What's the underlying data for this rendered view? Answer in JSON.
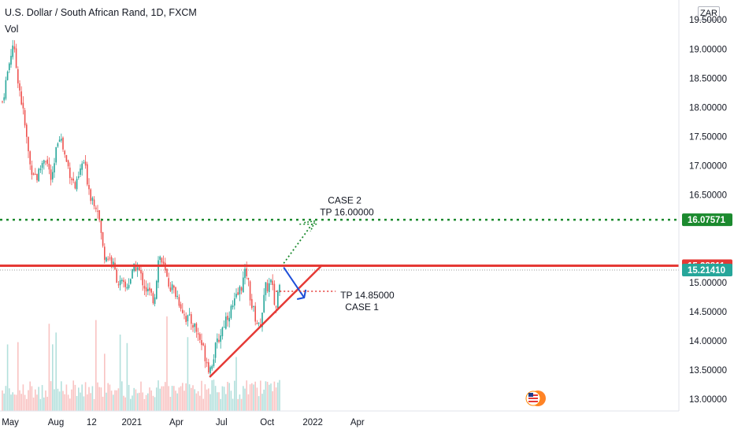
{
  "header": {
    "title": "U.S. Dollar / South African Rand, 1D, FXCM",
    "volume_label": "Vol",
    "currency": "ZAR"
  },
  "colors": {
    "up": "#26a69a",
    "down": "#ef5350",
    "support": "#e53935",
    "resistance": "#e53935",
    "target": "#1b8a2e",
    "case1_arrow": "#1e4fd8",
    "current_price": "#26a69a"
  },
  "chart_data": {
    "type": "candlestick",
    "title": "U.S. Dollar / South African Rand, 1D, FXCM",
    "ylim": [
      12.8,
      19.8
    ],
    "y_ticks": [
      "19.50000",
      "19.00000",
      "18.50000",
      "18.00000",
      "17.50000",
      "17.00000",
      "16.50000",
      "15.00000",
      "14.50000",
      "14.00000",
      "13.50000",
      "13.00000"
    ],
    "x_ticks": [
      "May",
      "Aug",
      "12",
      "2021",
      "Apr",
      "Jul",
      "Oct",
      "2022",
      "Apr"
    ],
    "close_path": [
      [
        "2020-04-15",
        18.1
      ],
      [
        "2020-05-06",
        19.1
      ],
      [
        "2020-05-27",
        17.9
      ],
      [
        "2020-06-10",
        17.0
      ],
      [
        "2020-06-24",
        16.8
      ],
      [
        "2020-07-10",
        17.2
      ],
      [
        "2020-07-24",
        16.7
      ],
      [
        "2020-08-07",
        17.6
      ],
      [
        "2020-08-21",
        17.1
      ],
      [
        "2020-09-10",
        16.6
      ],
      [
        "2020-09-25",
        17.1
      ],
      [
        "2020-10-10",
        16.5
      ],
      [
        "2020-10-24",
        16.3
      ],
      [
        "2020-11-05",
        15.5
      ],
      [
        "2020-11-20",
        15.4
      ],
      [
        "2020-12-05",
        15.0
      ],
      [
        "2020-12-20",
        14.9
      ],
      [
        "2021-01-10",
        15.3
      ],
      [
        "2021-01-29",
        14.9
      ],
      [
        "2021-02-15",
        14.7
      ],
      [
        "2021-02-25",
        15.5
      ],
      [
        "2021-03-15",
        15.0
      ],
      [
        "2021-04-01",
        14.8
      ],
      [
        "2021-04-20",
        14.4
      ],
      [
        "2021-05-05",
        14.3
      ],
      [
        "2021-05-20",
        14.0
      ],
      [
        "2021-06-07",
        13.5
      ],
      [
        "2021-06-20",
        13.9
      ],
      [
        "2021-07-10",
        14.4
      ],
      [
        "2021-07-25",
        14.6
      ],
      [
        "2021-08-08",
        14.9
      ],
      [
        "2021-08-20",
        15.2
      ],
      [
        "2021-08-31",
        14.6
      ],
      [
        "2021-09-15",
        14.2
      ],
      [
        "2021-09-28",
        14.9
      ],
      [
        "2021-10-10",
        15.0
      ],
      [
        "2021-10-18",
        14.5
      ],
      [
        "2021-10-28",
        15.2
      ]
    ],
    "horizontal_lines": [
      {
        "price": 15.28811,
        "label": "15.28811"
      },
      {
        "price": 16.07571,
        "label": "16.07571"
      },
      {
        "price": 15.2141,
        "label": "15.21410"
      }
    ],
    "trendline": {
      "from": [
        "2021-06-07",
        13.38
      ],
      "to": [
        "2022-01-20",
        15.3
      ]
    },
    "annotations": [
      {
        "line1": "CASE 2",
        "line2": "TP 16.00000"
      },
      {
        "line1": "TP 14.85000",
        "line2": "CASE 1"
      }
    ],
    "case1_target": 14.85,
    "case2_target": 16.0
  }
}
